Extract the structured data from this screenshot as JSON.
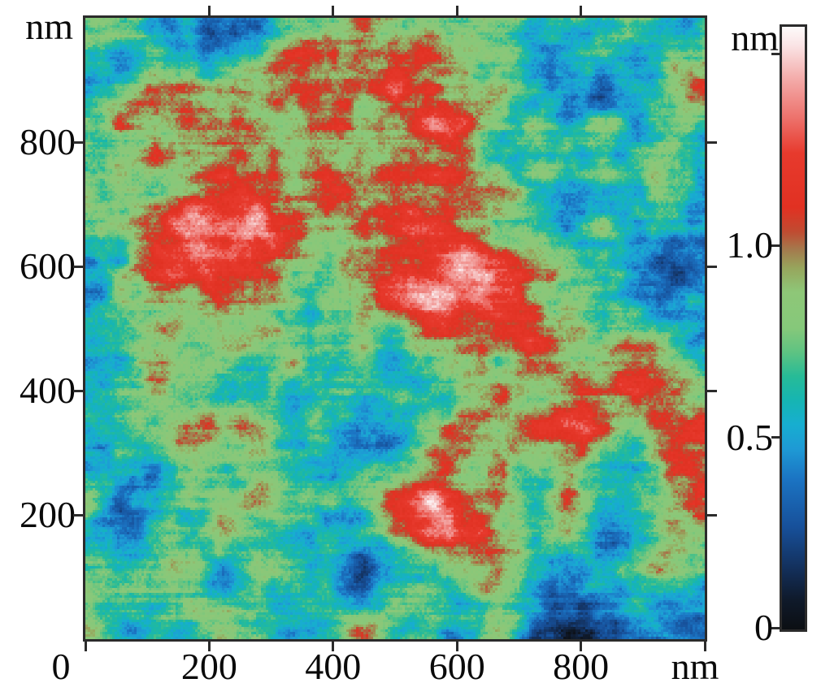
{
  "figure": {
    "background": "#ffffff",
    "axis_color": "#2b2b2b",
    "label_color": "#0a0a0a"
  },
  "axes": {
    "x": {
      "unit": "nm",
      "range": [
        0,
        1000
      ],
      "ticks": [
        {
          "value": 0,
          "label": "0"
        },
        {
          "value": 200,
          "label": "200"
        },
        {
          "value": 400,
          "label": "400"
        },
        {
          "value": 600,
          "label": "600"
        },
        {
          "value": 800,
          "label": "800"
        }
      ],
      "tick_marks_bottom": [
        0,
        200,
        400,
        600,
        800,
        1000
      ],
      "tick_marks_top": [
        200,
        400,
        600,
        800
      ]
    },
    "y": {
      "unit": "nm",
      "range": [
        0,
        1000
      ],
      "ticks": [
        {
          "value": 200,
          "label": "200"
        },
        {
          "value": 400,
          "label": "400"
        },
        {
          "value": 600,
          "label": "600"
        },
        {
          "value": 800,
          "label": "800"
        }
      ],
      "tick_marks_left": [
        200,
        400,
        600,
        800
      ],
      "tick_marks_right": [
        200,
        400,
        600,
        800
      ]
    }
  },
  "colorbar": {
    "unit": "nm",
    "scale_min": 0,
    "scale_max": 1.57,
    "ticks": [
      {
        "value": 0,
        "label": "0"
      },
      {
        "value": 0.5,
        "label": "0.5"
      },
      {
        "value": 1.0,
        "label": "1.0"
      },
      {
        "value": 1.5,
        "label": ""
      }
    ]
  },
  "chart_data": {
    "type": "heatmap",
    "title": "",
    "xlabel": "nm",
    "ylabel": "nm",
    "x_range_nm": [
      0,
      1000
    ],
    "y_range_nm": [
      0,
      1000
    ],
    "height_scale_nm": {
      "min": 0,
      "max": 1.57
    },
    "colorbar_labeled_values_nm": [
      0,
      0.5,
      1.0
    ],
    "mean_height_nm": 0.83,
    "typical_red_patch_height_nm": 1.1,
    "typical_blue_dip_height_nm": 0.45,
    "colormap_stops": [
      [
        0.0,
        "#0c0f13"
      ],
      [
        0.05,
        "#0f1a2b"
      ],
      [
        0.1,
        "#132f5a"
      ],
      [
        0.17,
        "#17509a"
      ],
      [
        0.25,
        "#1b74c3"
      ],
      [
        0.3,
        "#1e9ad5"
      ],
      [
        0.34,
        "#17aed0"
      ],
      [
        0.38,
        "#16b5b2"
      ],
      [
        0.42,
        "#27bb97"
      ],
      [
        0.46,
        "#5ec382"
      ],
      [
        0.5,
        "#86c87a"
      ],
      [
        0.56,
        "#8ec778"
      ],
      [
        0.6,
        "#97a55c"
      ],
      [
        0.63,
        "#a47a4d"
      ],
      [
        0.66,
        "#c04b31"
      ],
      [
        0.7,
        "#e13122"
      ],
      [
        0.79,
        "#e73a2d"
      ],
      [
        0.85,
        "#ed736d"
      ],
      [
        0.91,
        "#f3a8a6"
      ],
      [
        0.97,
        "#fae5e6"
      ],
      [
        1.0,
        "#fdfafa"
      ]
    ],
    "texture": {
      "seed": 1337,
      "base": 0.53,
      "gain": 0.33,
      "pixel_amp": 0.09,
      "row_amp": 0.09,
      "row_jitter": 0.05,
      "octaves": [
        {
          "fx": 5,
          "fy": 5,
          "amp": 1.0
        },
        {
          "fx": 9,
          "fy": 9,
          "amp": 0.6
        },
        {
          "fx": 18,
          "fy": 18,
          "amp": 0.35
        },
        {
          "fx": 36,
          "fy": 36,
          "amp": 0.22
        },
        {
          "fx": 80,
          "fy": 80,
          "amp": 0.12
        },
        {
          "fx": 12,
          "fy": 110,
          "amp": 0.11
        }
      ]
    }
  }
}
